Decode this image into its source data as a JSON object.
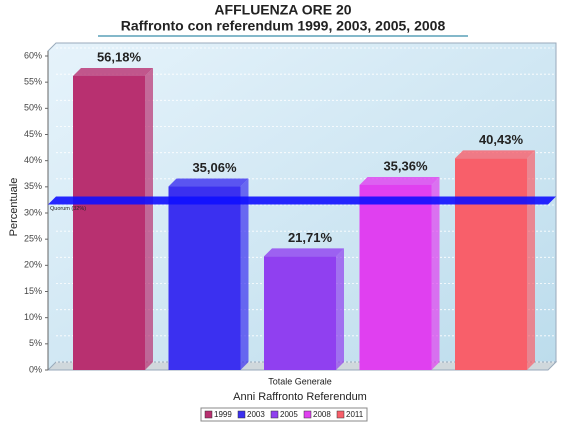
{
  "chart_data": {
    "type": "bar",
    "title": "AFFLUENZA ORE 20",
    "subtitle": "Raffronto con referendum 1999, 2003, 2005, 2008",
    "y_label": "Percentuale",
    "x_label": "Anni Raffronto Referendum",
    "categories": [
      "Totale Generale"
    ],
    "series": [
      {
        "name": "1999",
        "color": "#b83070",
        "values": [
          56.18
        ],
        "value_labels": [
          "56,18%"
        ]
      },
      {
        "name": "2003",
        "color": "#3b30f0",
        "values": [
          35.06
        ],
        "value_labels": [
          "35,06%"
        ]
      },
      {
        "name": "2005",
        "color": "#9040f0",
        "values": [
          21.71
        ],
        "value_labels": [
          "21,71%"
        ]
      },
      {
        "name": "2008",
        "color": "#e040f0",
        "values": [
          35.36
        ],
        "value_labels": [
          "35,36%"
        ]
      },
      {
        "name": "2011",
        "color": "#f85f6a",
        "values": [
          40.43
        ],
        "value_labels": [
          "40,43%"
        ]
      }
    ],
    "quorum": {
      "value": 32,
      "label": "Quorum (32%)"
    },
    "ylim": [
      0,
      60
    ],
    "yticks": [
      {
        "value": 0,
        "label": "0%"
      },
      {
        "value": 5,
        "label": "5%"
      },
      {
        "value": 10,
        "label": "10%"
      },
      {
        "value": 15,
        "label": "15%"
      },
      {
        "value": 20,
        "label": "20%"
      },
      {
        "value": 25,
        "label": "25%"
      },
      {
        "value": 30,
        "label": "30%"
      },
      {
        "value": 35,
        "label": "35%"
      },
      {
        "value": 40,
        "label": "40%"
      },
      {
        "value": 45,
        "label": "45%"
      },
      {
        "value": 50,
        "label": "50%"
      },
      {
        "value": 55,
        "label": "55%"
      },
      {
        "value": 60,
        "label": "60%"
      }
    ],
    "grid": true
  }
}
